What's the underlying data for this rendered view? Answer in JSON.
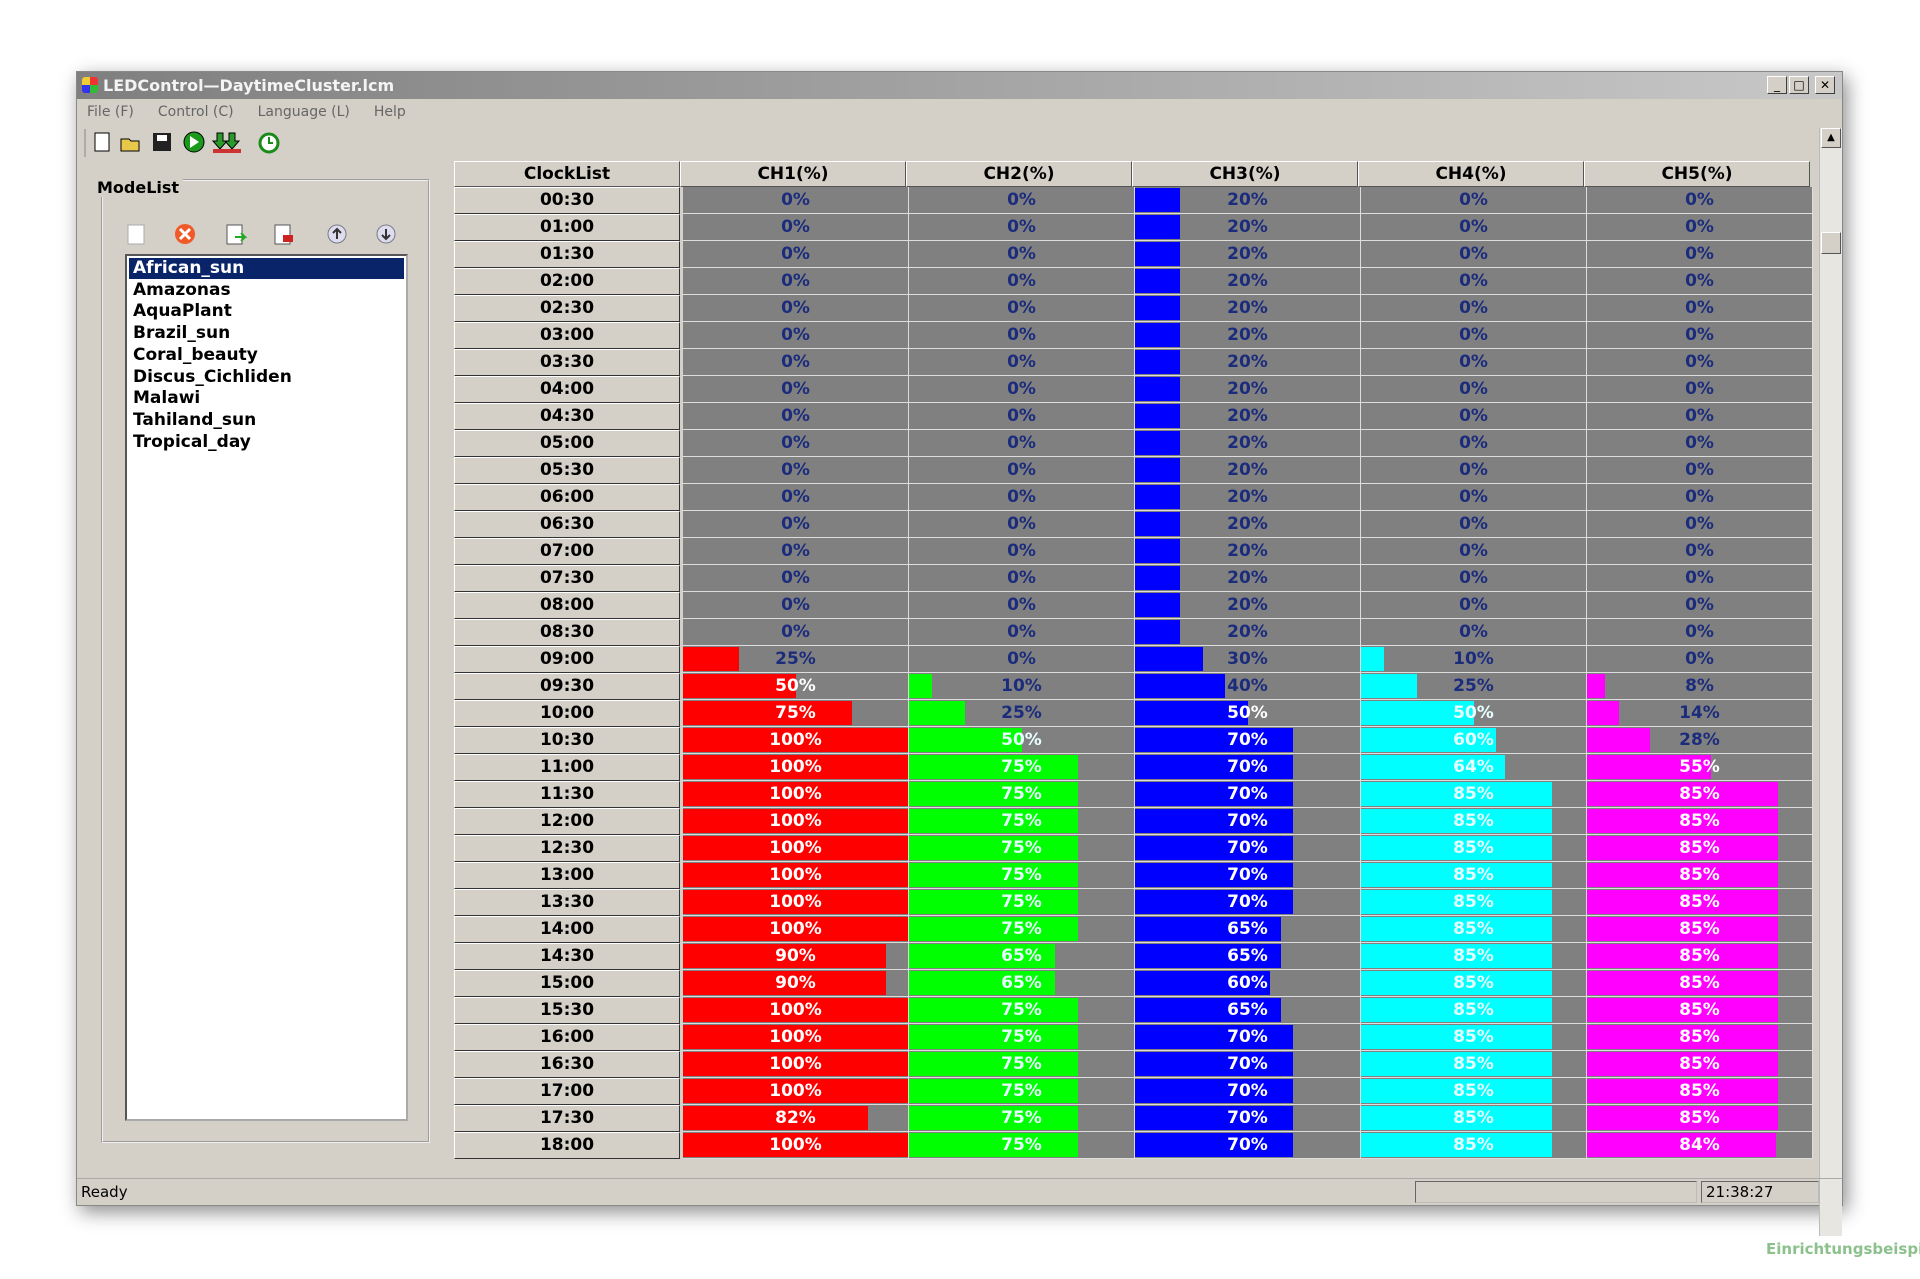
{
  "window": {
    "title": "LEDControl—DaytimeCluster.lcm"
  },
  "menu": [
    "File (F)",
    "Control (C)",
    "Language (L)",
    "Help"
  ],
  "modelist": {
    "title": "ModeList",
    "items": [
      "African_sun",
      "Amazonas",
      "AquaPlant",
      "Brazil_sun",
      "Coral_beauty",
      "Discus_Cichliden",
      "Malawi",
      "Tahiland_sun",
      "Tropical_day"
    ],
    "selected": 0
  },
  "table": {
    "columns": [
      "ClockList",
      "CH1(%)",
      "CH2(%)",
      "CH3(%)",
      "CH4(%)",
      "CH5(%)"
    ],
    "channel_colors": [
      "#ff0000",
      "#00ff00",
      "#0000ff",
      "#00ffff",
      "#ff00ff"
    ],
    "rows": [
      [
        "00:30",
        {
          "value": 0,
          "label": "0%"
        },
        {
          "value": 0,
          "label": "0%"
        },
        {
          "value": 20,
          "label": "20%"
        },
        {
          "value": 0,
          "label": "0%"
        },
        {
          "value": 0,
          "label": "0%"
        }
      ],
      [
        "01:00",
        {
          "value": 0,
          "label": "0%"
        },
        {
          "value": 0,
          "label": "0%"
        },
        {
          "value": 20,
          "label": "20%"
        },
        {
          "value": 0,
          "label": "0%"
        },
        {
          "value": 0,
          "label": "0%"
        }
      ],
      [
        "01:30",
        {
          "value": 0,
          "label": "0%"
        },
        {
          "value": 0,
          "label": "0%"
        },
        {
          "value": 20,
          "label": "20%"
        },
        {
          "value": 0,
          "label": "0%"
        },
        {
          "value": 0,
          "label": "0%"
        }
      ],
      [
        "02:00",
        {
          "value": 0,
          "label": "0%"
        },
        {
          "value": 0,
          "label": "0%"
        },
        {
          "value": 20,
          "label": "20%"
        },
        {
          "value": 0,
          "label": "0%"
        },
        {
          "value": 0,
          "label": "0%"
        }
      ],
      [
        "02:30",
        {
          "value": 0,
          "label": "0%"
        },
        {
          "value": 0,
          "label": "0%"
        },
        {
          "value": 20,
          "label": "20%"
        },
        {
          "value": 0,
          "label": "0%"
        },
        {
          "value": 0,
          "label": "0%"
        }
      ],
      [
        "03:00",
        {
          "value": 0,
          "label": "0%"
        },
        {
          "value": 0,
          "label": "0%"
        },
        {
          "value": 20,
          "label": "20%"
        },
        {
          "value": 0,
          "label": "0%"
        },
        {
          "value": 0,
          "label": "0%"
        }
      ],
      [
        "03:30",
        {
          "value": 0,
          "label": "0%"
        },
        {
          "value": 0,
          "label": "0%"
        },
        {
          "value": 20,
          "label": "20%"
        },
        {
          "value": 0,
          "label": "0%"
        },
        {
          "value": 0,
          "label": "0%"
        }
      ],
      [
        "04:00",
        {
          "value": 0,
          "label": "0%"
        },
        {
          "value": 0,
          "label": "0%"
        },
        {
          "value": 20,
          "label": "20%"
        },
        {
          "value": 0,
          "label": "0%"
        },
        {
          "value": 0,
          "label": "0%"
        }
      ],
      [
        "04:30",
        {
          "value": 0,
          "label": "0%"
        },
        {
          "value": 0,
          "label": "0%"
        },
        {
          "value": 20,
          "label": "20%"
        },
        {
          "value": 0,
          "label": "0%"
        },
        {
          "value": 0,
          "label": "0%"
        }
      ],
      [
        "05:00",
        {
          "value": 0,
          "label": "0%"
        },
        {
          "value": 0,
          "label": "0%"
        },
        {
          "value": 20,
          "label": "20%"
        },
        {
          "value": 0,
          "label": "0%"
        },
        {
          "value": 0,
          "label": "0%"
        }
      ],
      [
        "05:30",
        {
          "value": 0,
          "label": "0%"
        },
        {
          "value": 0,
          "label": "0%"
        },
        {
          "value": 20,
          "label": "20%"
        },
        {
          "value": 0,
          "label": "0%"
        },
        {
          "value": 0,
          "label": "0%"
        }
      ],
      [
        "06:00",
        {
          "value": 0,
          "label": "0%"
        },
        {
          "value": 0,
          "label": "0%"
        },
        {
          "value": 20,
          "label": "20%"
        },
        {
          "value": 0,
          "label": "0%"
        },
        {
          "value": 0,
          "label": "0%"
        }
      ],
      [
        "06:30",
        {
          "value": 0,
          "label": "0%"
        },
        {
          "value": 0,
          "label": "0%"
        },
        {
          "value": 20,
          "label": "20%"
        },
        {
          "value": 0,
          "label": "0%"
        },
        {
          "value": 0,
          "label": "0%"
        }
      ],
      [
        "07:00",
        {
          "value": 0,
          "label": "0%"
        },
        {
          "value": 0,
          "label": "0%"
        },
        {
          "value": 20,
          "label": "20%"
        },
        {
          "value": 0,
          "label": "0%"
        },
        {
          "value": 0,
          "label": "0%"
        }
      ],
      [
        "07:30",
        {
          "value": 0,
          "label": "0%"
        },
        {
          "value": 0,
          "label": "0%"
        },
        {
          "value": 20,
          "label": "20%"
        },
        {
          "value": 0,
          "label": "0%"
        },
        {
          "value": 0,
          "label": "0%"
        }
      ],
      [
        "08:00",
        {
          "value": 0,
          "label": "0%"
        },
        {
          "value": 0,
          "label": "0%"
        },
        {
          "value": 20,
          "label": "20%"
        },
        {
          "value": 0,
          "label": "0%"
        },
        {
          "value": 0,
          "label": "0%"
        }
      ],
      [
        "08:30",
        {
          "value": 0,
          "label": "0%"
        },
        {
          "value": 0,
          "label": "0%"
        },
        {
          "value": 20,
          "label": "20%"
        },
        {
          "value": 0,
          "label": "0%"
        },
        {
          "value": 0,
          "label": "0%"
        }
      ],
      [
        "09:00",
        {
          "value": 25,
          "label": "25%"
        },
        {
          "value": 0,
          "label": "0%"
        },
        {
          "value": 30,
          "label": "30%"
        },
        {
          "value": 10,
          "label": "10%"
        },
        {
          "value": 0,
          "label": "0%"
        }
      ],
      [
        "09:30",
        {
          "value": 50,
          "label": "50%"
        },
        {
          "value": 10,
          "label": "10%"
        },
        {
          "value": 40,
          "label": "40%"
        },
        {
          "value": 25,
          "label": "25%"
        },
        {
          "value": 8,
          "label": "8%"
        }
      ],
      [
        "10:00",
        {
          "value": 75,
          "label": "75%"
        },
        {
          "value": 25,
          "label": "25%"
        },
        {
          "value": 50,
          "label": "50%"
        },
        {
          "value": 50,
          "label": "50%"
        },
        {
          "value": 14,
          "label": "14%"
        }
      ],
      [
        "10:30",
        {
          "value": 100,
          "label": "100%"
        },
        {
          "value": 50,
          "label": "50%"
        },
        {
          "value": 70,
          "label": "70%"
        },
        {
          "value": 60,
          "label": "60%"
        },
        {
          "value": 28,
          "label": "28%"
        }
      ],
      [
        "11:00",
        {
          "value": 100,
          "label": "100%"
        },
        {
          "value": 75,
          "label": "75%"
        },
        {
          "value": 70,
          "label": "70%"
        },
        {
          "value": 64,
          "label": "64%"
        },
        {
          "value": 55,
          "label": "55%"
        }
      ],
      [
        "11:30",
        {
          "value": 100,
          "label": "100%"
        },
        {
          "value": 75,
          "label": "75%"
        },
        {
          "value": 70,
          "label": "70%"
        },
        {
          "value": 85,
          "label": "85%"
        },
        {
          "value": 85,
          "label": "85%"
        }
      ],
      [
        "12:00",
        {
          "value": 100,
          "label": "100%"
        },
        {
          "value": 75,
          "label": "75%"
        },
        {
          "value": 70,
          "label": "70%"
        },
        {
          "value": 85,
          "label": "85%"
        },
        {
          "value": 85,
          "label": "85%"
        }
      ],
      [
        "12:30",
        {
          "value": 100,
          "label": "100%"
        },
        {
          "value": 75,
          "label": "75%"
        },
        {
          "value": 70,
          "label": "70%"
        },
        {
          "value": 85,
          "label": "85%"
        },
        {
          "value": 85,
          "label": "85%"
        }
      ],
      [
        "13:00",
        {
          "value": 100,
          "label": "100%"
        },
        {
          "value": 75,
          "label": "75%"
        },
        {
          "value": 70,
          "label": "70%"
        },
        {
          "value": 85,
          "label": "85%"
        },
        {
          "value": 85,
          "label": "85%"
        }
      ],
      [
        "13:30",
        {
          "value": 100,
          "label": "100%"
        },
        {
          "value": 75,
          "label": "75%"
        },
        {
          "value": 70,
          "label": "70%"
        },
        {
          "value": 85,
          "label": "85%"
        },
        {
          "value": 85,
          "label": "85%"
        }
      ],
      [
        "14:00",
        {
          "value": 100,
          "label": "100%"
        },
        {
          "value": 75,
          "label": "75%"
        },
        {
          "value": 65,
          "label": "65%"
        },
        {
          "value": 85,
          "label": "85%"
        },
        {
          "value": 85,
          "label": "85%"
        }
      ],
      [
        "14:30",
        {
          "value": 90,
          "label": "90%"
        },
        {
          "value": 65,
          "label": "65%"
        },
        {
          "value": 65,
          "label": "65%"
        },
        {
          "value": 85,
          "label": "85%"
        },
        {
          "value": 85,
          "label": "85%"
        }
      ],
      [
        "15:00",
        {
          "value": 90,
          "label": "90%"
        },
        {
          "value": 65,
          "label": "65%"
        },
        {
          "value": 60,
          "label": "60%"
        },
        {
          "value": 85,
          "label": "85%"
        },
        {
          "value": 85,
          "label": "85%"
        }
      ],
      [
        "15:30",
        {
          "value": 100,
          "label": "100%"
        },
        {
          "value": 75,
          "label": "75%"
        },
        {
          "value": 65,
          "label": "65%"
        },
        {
          "value": 85,
          "label": "85%"
        },
        {
          "value": 85,
          "label": "85%"
        }
      ],
      [
        "16:00",
        {
          "value": 100,
          "label": "100%"
        },
        {
          "value": 75,
          "label": "75%"
        },
        {
          "value": 70,
          "label": "70%"
        },
        {
          "value": 85,
          "label": "85%"
        },
        {
          "value": 85,
          "label": "85%"
        }
      ],
      [
        "16:30",
        {
          "value": 100,
          "label": "100%"
        },
        {
          "value": 75,
          "label": "75%"
        },
        {
          "value": 70,
          "label": "70%"
        },
        {
          "value": 85,
          "label": "85%"
        },
        {
          "value": 85,
          "label": "85%"
        }
      ],
      [
        "17:00",
        {
          "value": 100,
          "label": "100%"
        },
        {
          "value": 75,
          "label": "75%"
        },
        {
          "value": 70,
          "label": "70%"
        },
        {
          "value": 85,
          "label": "85%"
        },
        {
          "value": 85,
          "label": "85%"
        }
      ],
      [
        "17:30",
        {
          "value": 82,
          "label": "82%"
        },
        {
          "value": 75,
          "label": "75%"
        },
        {
          "value": 70,
          "label": "70%"
        },
        {
          "value": 85,
          "label": "85%"
        },
        {
          "value": 85,
          "label": "85%"
        }
      ],
      [
        "18:00",
        {
          "value": 100,
          "label": "100%"
        },
        {
          "value": 75,
          "label": "75%"
        },
        {
          "value": 70,
          "label": "70%"
        },
        {
          "value": 85,
          "label": "85%"
        },
        {
          "value": 84,
          "label": "84%"
        }
      ]
    ]
  },
  "status": {
    "text": "Ready",
    "time": "21:38:27"
  },
  "watermark": "Einrichtungsbeispiele.de"
}
